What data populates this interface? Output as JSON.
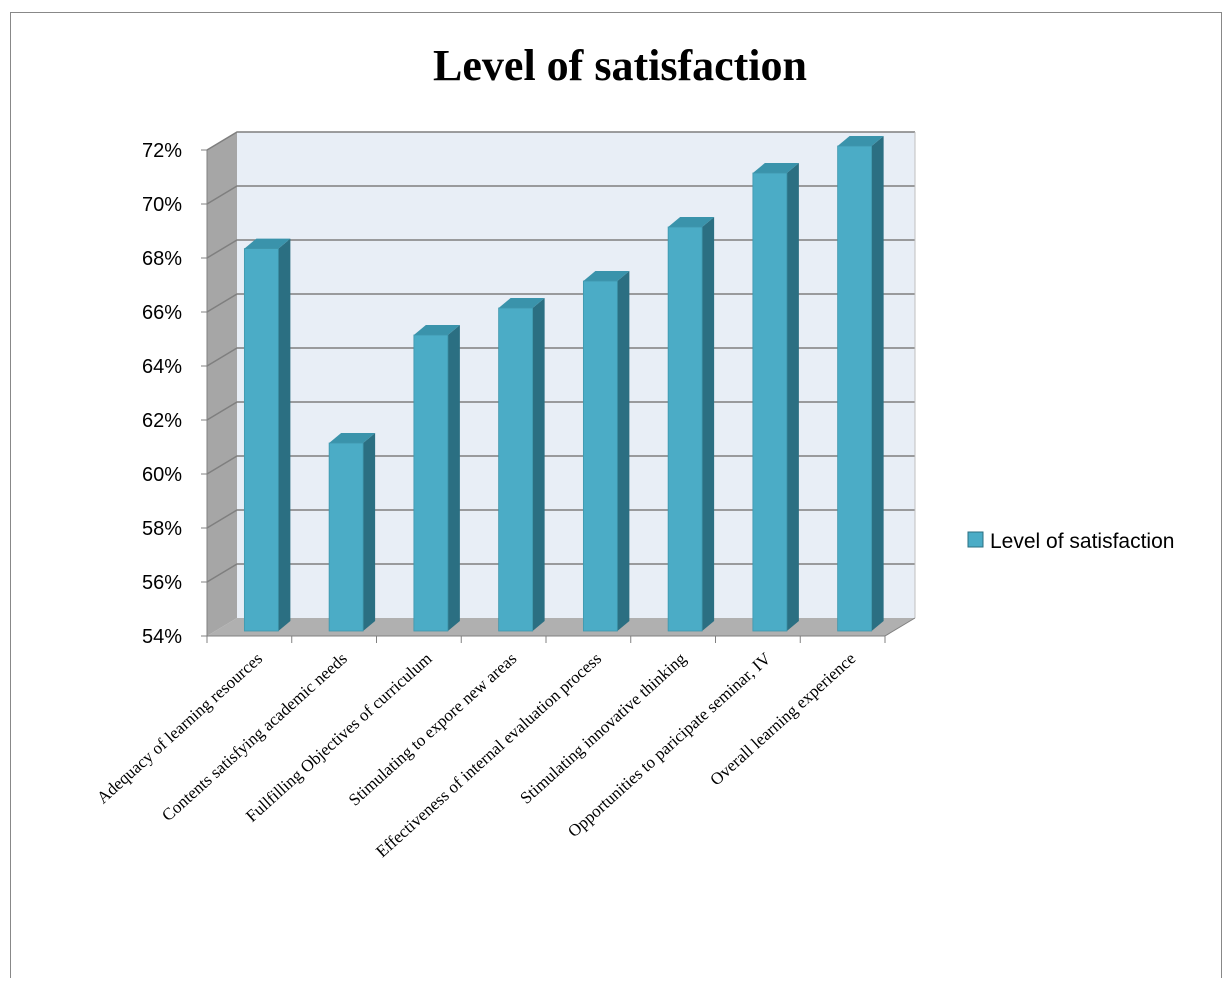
{
  "chart_data": {
    "type": "bar",
    "title": "Level of satisfaction",
    "categories": [
      "Adequacy of learning resources",
      "Contents  satisfying academic needs",
      "Fullfilling Objectives of curriculum",
      "Stimulating to expore new areas",
      "Effectiveness of internal evaluation process",
      "Stimulating innovative thinking",
      "Opportunities to paricipate seminar, IV",
      "Overall learning experience"
    ],
    "series": [
      {
        "name": "Level of satisfaction",
        "values": [
          68.2,
          61,
          65,
          66,
          67,
          69,
          71,
          72
        ]
      }
    ],
    "value_format": "percent",
    "ylim": [
      54,
      72
    ],
    "yticks": [
      "54%",
      "56%",
      "58%",
      "60%",
      "62%",
      "64%",
      "66%",
      "68%",
      "70%",
      "72%"
    ],
    "grid": true,
    "legend": "right",
    "colors": {
      "bar_front": "#4bacc6",
      "bar_side": "#2b6f82",
      "bar_top": "#3a93ab",
      "wall": "#e8eef6",
      "wall_side": "#a6a6a6",
      "floor": "#b0b0b0",
      "grid": "#7f7f7f"
    }
  }
}
